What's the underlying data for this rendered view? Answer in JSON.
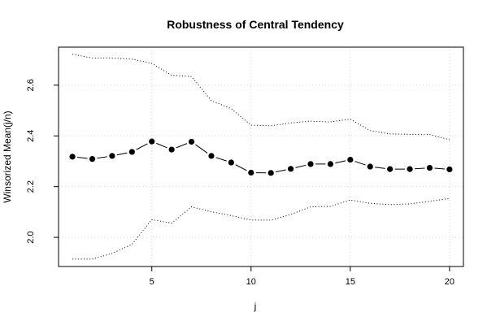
{
  "chart_data": {
    "type": "line",
    "title": "Robustness of Central Tendency",
    "xlabel": "j",
    "ylabel": "Winsorized Mean(j/n)",
    "xlim": [
      0.3,
      20.7
    ],
    "ylim": [
      1.885,
      2.75
    ],
    "xticks": [
      5,
      10,
      15,
      20
    ],
    "yticks": [
      2.0,
      2.2,
      2.4,
      2.6
    ],
    "xtick_labels": [
      "5",
      "10",
      "15",
      "20"
    ],
    "ytick_labels": [
      "2.0",
      "2.2",
      "2.4",
      "2.6"
    ],
    "grid": true,
    "x": [
      1,
      2,
      3,
      4,
      5,
      6,
      7,
      8,
      9,
      10,
      11,
      12,
      13,
      14,
      15,
      16,
      17,
      18,
      19,
      20
    ],
    "series": [
      {
        "style": "line-with-points",
        "color": "#000000",
        "values": [
          2.318,
          2.309,
          2.321,
          2.337,
          2.378,
          2.346,
          2.377,
          2.321,
          2.295,
          2.255,
          2.254,
          2.27,
          2.289,
          2.289,
          2.306,
          2.279,
          2.269,
          2.269,
          2.274,
          2.268
        ]
      },
      {
        "style": "dotted",
        "color": "#000000",
        "values": [
          2.722,
          2.707,
          2.707,
          2.703,
          2.686,
          2.639,
          2.634,
          2.539,
          2.507,
          2.442,
          2.44,
          2.451,
          2.458,
          2.455,
          2.466,
          2.421,
          2.408,
          2.406,
          2.405,
          2.385
        ]
      },
      {
        "style": "dotted",
        "color": "#000000",
        "values": [
          1.914,
          1.914,
          1.937,
          1.972,
          2.07,
          2.056,
          2.12,
          2.101,
          2.086,
          2.068,
          2.068,
          2.09,
          2.12,
          2.122,
          2.147,
          2.134,
          2.129,
          2.132,
          2.142,
          2.153
        ]
      }
    ]
  }
}
